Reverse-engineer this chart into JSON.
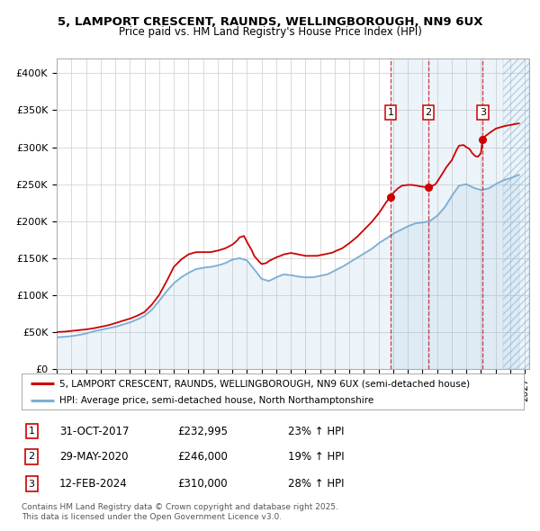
{
  "title_line1": "5, LAMPORT CRESCENT, RAUNDS, WELLINGBOROUGH, NN9 6UX",
  "title_line2": "Price paid vs. HM Land Registry's House Price Index (HPI)",
  "bg_color": "#ffffff",
  "plot_bg_color": "#ffffff",
  "grid_color": "#cccccc",
  "hpi_color": "#7bafd4",
  "price_color": "#cc0000",
  "xmin": 1995.0,
  "xmax": 2027.3,
  "ymin": 0,
  "ymax": 420000,
  "yticks": [
    0,
    50000,
    100000,
    150000,
    200000,
    250000,
    300000,
    350000,
    400000
  ],
  "ytick_labels": [
    "£0",
    "£50K",
    "£100K",
    "£150K",
    "£200K",
    "£250K",
    "£300K",
    "£350K",
    "£400K"
  ],
  "xtick_years": [
    1995,
    1996,
    1997,
    1998,
    1999,
    2000,
    2001,
    2002,
    2003,
    2004,
    2005,
    2006,
    2007,
    2008,
    2009,
    2010,
    2011,
    2012,
    2013,
    2014,
    2015,
    2016,
    2017,
    2018,
    2019,
    2020,
    2021,
    2022,
    2023,
    2024,
    2025,
    2026,
    2027
  ],
  "sale_dates": [
    2017.833,
    2020.415,
    2024.115
  ],
  "sale_prices": [
    232995,
    246000,
    310000
  ],
  "sale_labels": [
    "1",
    "2",
    "3"
  ],
  "sale_date_strs": [
    "31-OCT-2017",
    "29-MAY-2020",
    "12-FEB-2024"
  ],
  "sale_price_strs": [
    "£232,995",
    "£246,000",
    "£310,000"
  ],
  "sale_hpi_strs": [
    "23% ↑ HPI",
    "19% ↑ HPI",
    "28% ↑ HPI"
  ],
  "legend_line1": "5, LAMPORT CRESCENT, RAUNDS, WELLINGBOROUGH, NN9 6UX (semi-detached house)",
  "legend_line2": "HPI: Average price, semi-detached house, North Northamptonshire",
  "footer": "Contains HM Land Registry data © Crown copyright and database right 2025.\nThis data is licensed under the Open Government Licence v3.0.",
  "shade_alpha": 0.15
}
